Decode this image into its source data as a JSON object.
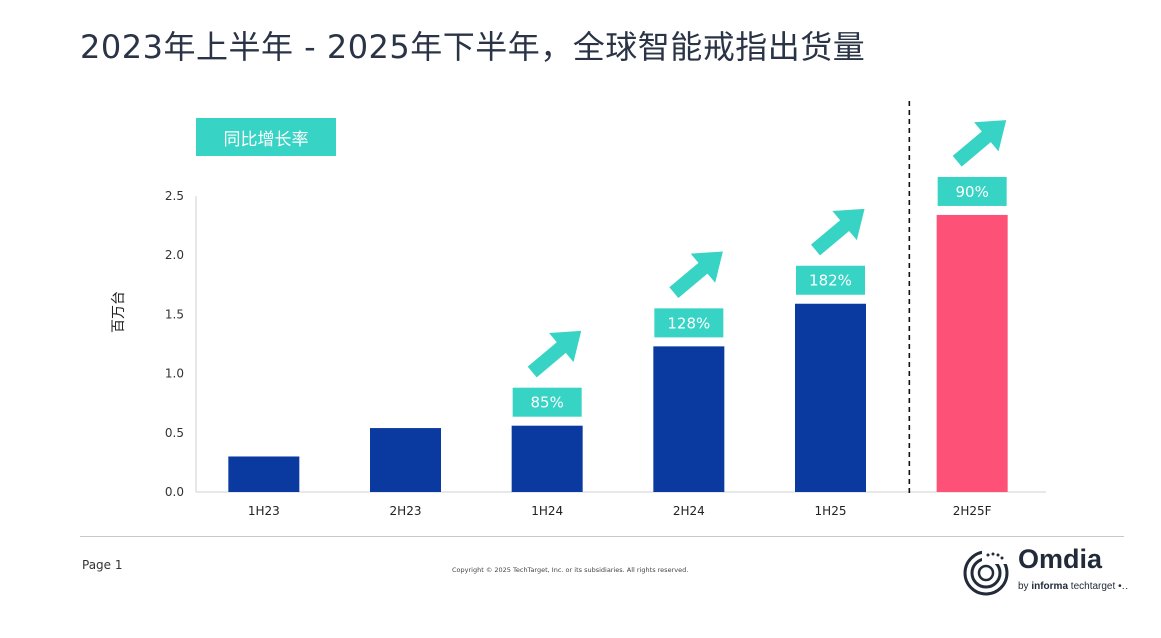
{
  "title": "2023年上半年 - 2025年下半年，全球智能戒指出货量",
  "legend_label": "同比增长率",
  "footer": {
    "page": "Page 1",
    "copyright": "Copyright © 2025 TechTarget, Inc. or its subsidiaries. All rights reserved.",
    "logo_name": "Omdia",
    "logo_by": "by",
    "logo_brand": "informa",
    "logo_rest": "techtarget"
  },
  "colors": {
    "actual": "#0a3aa0",
    "forecast": "#fe5178",
    "growth": "#37d3c4",
    "axis": "#d0d0d0"
  },
  "chart_data": {
    "type": "bar",
    "ylabel": "百万台",
    "xlabel": "",
    "ylim": [
      0,
      2.5
    ],
    "yticks": [
      "0.0",
      "0.5",
      "1.0",
      "1.5",
      "2.0",
      "2.5"
    ],
    "categories": [
      "1H23",
      "2H23",
      "1H24",
      "2H24",
      "1H25",
      "2H25F"
    ],
    "values": [
      0.3,
      0.54,
      0.56,
      1.23,
      1.59,
      2.34
    ],
    "forecast": [
      false,
      false,
      false,
      false,
      false,
      true
    ],
    "growth_labels": [
      null,
      null,
      "85%",
      "128%",
      "182%",
      "90%"
    ],
    "forecast_divider": "between 1H25 and 2H25F",
    "grid": false
  }
}
